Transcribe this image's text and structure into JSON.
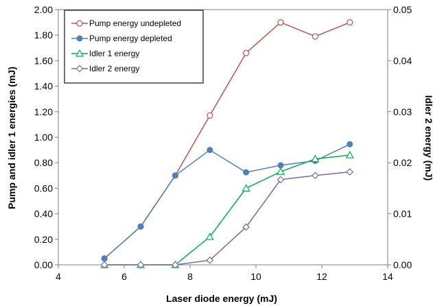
{
  "chart_data": {
    "type": "line",
    "title": "",
    "xlabel": "Laser diode energy (mJ)",
    "ylabel": "Pump and idler 1 energies (mJ)",
    "y2label": "Idler 2 energy (mJ)",
    "xlim": [
      4,
      14
    ],
    "ylim": [
      0,
      2.0
    ],
    "y2lim": [
      0,
      0.05
    ],
    "x_ticks": [
      "4",
      "6",
      "8",
      "10",
      "12",
      "14"
    ],
    "y_ticks": [
      "0.00",
      "0.20",
      "0.40",
      "0.60",
      "0.80",
      "1.00",
      "1.20",
      "1.40",
      "1.60",
      "1.80",
      "2.00"
    ],
    "y2_ticks": [
      "0.00",
      "0.01",
      "0.02",
      "0.03",
      "0.04",
      "0.05"
    ],
    "grid": false,
    "legend_position": "top-left",
    "series": [
      {
        "name": "Pump energy undepleted",
        "axis": "left",
        "color": "#c0504d",
        "marker": "open-circle",
        "x": [
          5.4,
          6.5,
          7.55,
          8.6,
          9.7,
          10.75,
          11.8,
          12.85
        ],
        "values": [
          0.05,
          0.3,
          0.7,
          1.17,
          1.66,
          1.9,
          1.79,
          1.9
        ]
      },
      {
        "name": "Pump energy depleted",
        "axis": "left",
        "color": "#4f81bd",
        "marker": "filled-circle",
        "x": [
          5.4,
          6.5,
          7.55,
          8.6,
          9.7,
          10.75,
          11.8,
          12.85
        ],
        "values": [
          0.05,
          0.3,
          0.7,
          0.9,
          0.725,
          0.78,
          0.815,
          0.945
        ]
      },
      {
        "name": "Idler 1 energy",
        "axis": "left",
        "color": "#00b050",
        "marker": "open-triangle",
        "x": [
          5.4,
          6.5,
          7.55,
          8.6,
          9.7,
          10.75,
          11.8,
          12.85
        ],
        "values": [
          0,
          0,
          0,
          0.22,
          0.6,
          0.73,
          0.83,
          0.86
        ]
      },
      {
        "name": "Idler 2 energy",
        "axis": "right",
        "color": "#8064a2",
        "marker": "open-diamond",
        "x": [
          5.4,
          6.5,
          7.55,
          8.6,
          9.7,
          10.75,
          11.8,
          12.85
        ],
        "values": [
          0,
          0,
          0,
          0.0009,
          0.0074,
          0.0167,
          0.0175,
          0.0182
        ]
      }
    ]
  }
}
